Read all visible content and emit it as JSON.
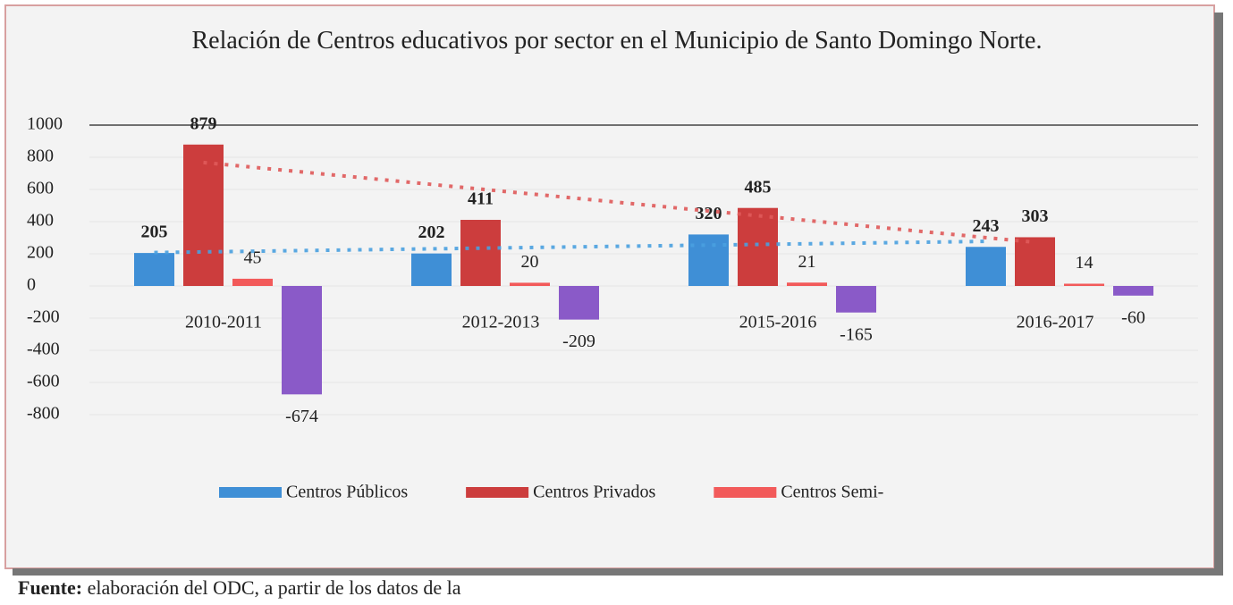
{
  "chart_data": {
    "type": "bar",
    "title": "Relación de Centros educativos por sector en el Municipio de Santo Domingo Norte.",
    "categories": [
      "2010-2011",
      "2012-2013",
      "2015-2016",
      "2016-2017"
    ],
    "series": [
      {
        "name": "Centros Públicos",
        "color": "#3f8fd6",
        "values": [
          205,
          202,
          320,
          243
        ],
        "trendline": true,
        "bold_labels": true
      },
      {
        "name": "Centros Privados",
        "color": "#cc3d3d",
        "values": [
          879,
          411,
          485,
          303
        ],
        "trendline": true,
        "bold_labels": true
      },
      {
        "name": "Centros Semi-",
        "color": "#f25a5a",
        "values": [
          45,
          20,
          21,
          14
        ]
      },
      {
        "color": "#8a5ac8",
        "values": [
          -674,
          -209,
          -165,
          -60
        ]
      }
    ],
    "ylim": [
      -800,
      1000
    ],
    "yticks": [
      1000,
      800,
      600,
      400,
      200,
      0,
      -200,
      -400,
      -600,
      -800
    ],
    "grid": true,
    "legend": "bottom",
    "source_label": "Fuente:",
    "source_text": "elaboración del ODC, a partir de los datos de la"
  }
}
